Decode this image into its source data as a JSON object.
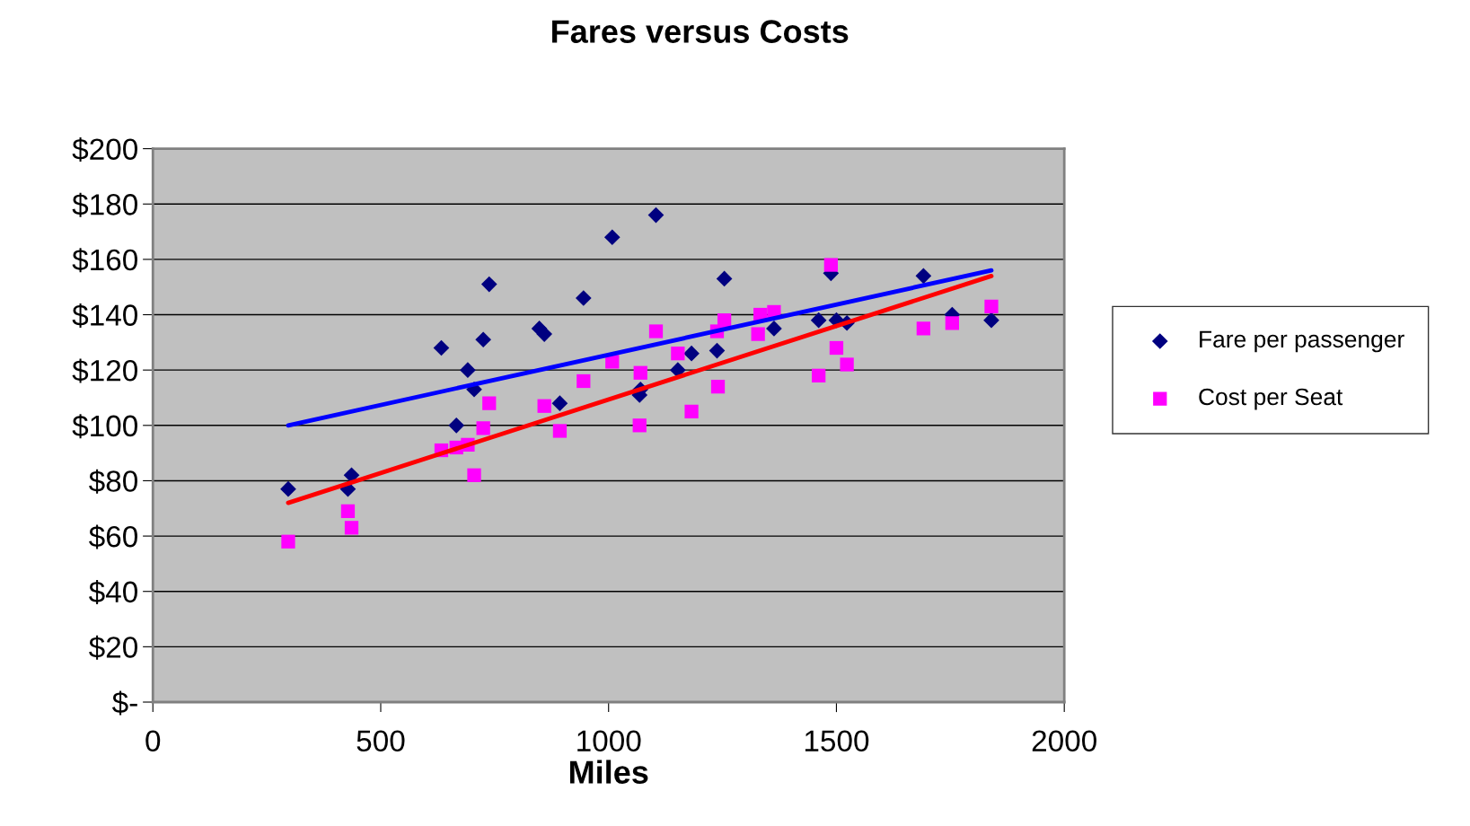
{
  "chart_data": {
    "type": "scatter",
    "title": "Fares versus Costs",
    "xlabel": "Miles",
    "xlim": [
      0,
      2000
    ],
    "xticks": [
      0,
      500,
      1000,
      1500,
      2000
    ],
    "ylim": [
      0,
      200
    ],
    "yticks": [
      {
        "value": 0,
        "label": "$-"
      },
      {
        "value": 20,
        "label": "$20"
      },
      {
        "value": 40,
        "label": "$40"
      },
      {
        "value": 60,
        "label": "$60"
      },
      {
        "value": 80,
        "label": "$80"
      },
      {
        "value": 100,
        "label": "$100"
      },
      {
        "value": 120,
        "label": "$120"
      },
      {
        "value": 140,
        "label": "$140"
      },
      {
        "value": 160,
        "label": "$160"
      },
      {
        "value": 180,
        "label": "$180"
      },
      {
        "value": 200,
        "label": "$200"
      }
    ],
    "grid": "y",
    "legend": "right",
    "series": [
      {
        "name": "Fare per passenger",
        "color": "#000080",
        "marker": "diamond",
        "x": [
          297,
          428,
          436,
          633,
          666,
          691,
          705,
          725,
          738,
          848,
          859,
          893,
          945,
          1008,
          1068,
          1070,
          1104,
          1152,
          1182,
          1238,
          1240,
          1254,
          1328,
          1363,
          1461,
          1488,
          1500,
          1523,
          1691,
          1754,
          1840
        ],
        "values": [
          77,
          77,
          82,
          128,
          100,
          120,
          113,
          131,
          151,
          135,
          133,
          108,
          146,
          168,
          111,
          113,
          176,
          120,
          126,
          127,
          null,
          153,
          null,
          135,
          138,
          155,
          138,
          137,
          154,
          140,
          138
        ]
      },
      {
        "name": "Cost per Seat",
        "color": "#ff00ff",
        "marker": "square",
        "x": [
          297,
          428,
          436,
          633,
          666,
          691,
          705,
          725,
          738,
          848,
          859,
          893,
          945,
          1008,
          1068,
          1070,
          1104,
          1152,
          1182,
          1238,
          1240,
          1254,
          1328,
          1333,
          1363,
          1461,
          1488,
          1500,
          1523,
          1691,
          1754,
          1840
        ],
        "values": [
          58,
          69,
          63,
          91,
          92,
          93,
          82,
          99,
          108,
          null,
          107,
          98,
          116,
          123,
          100,
          119,
          134,
          126,
          105,
          134,
          114,
          138,
          133,
          140,
          141,
          118,
          158,
          128,
          122,
          135,
          137,
          143
        ]
      },
      {
        "type": "line",
        "color": "#0000ff",
        "x": [
          297,
          1840
        ],
        "values": [
          100,
          156
        ]
      },
      {
        "type": "line",
        "color": "#ff0000",
        "x": [
          297,
          1840
        ],
        "values": [
          72,
          154
        ]
      }
    ]
  }
}
